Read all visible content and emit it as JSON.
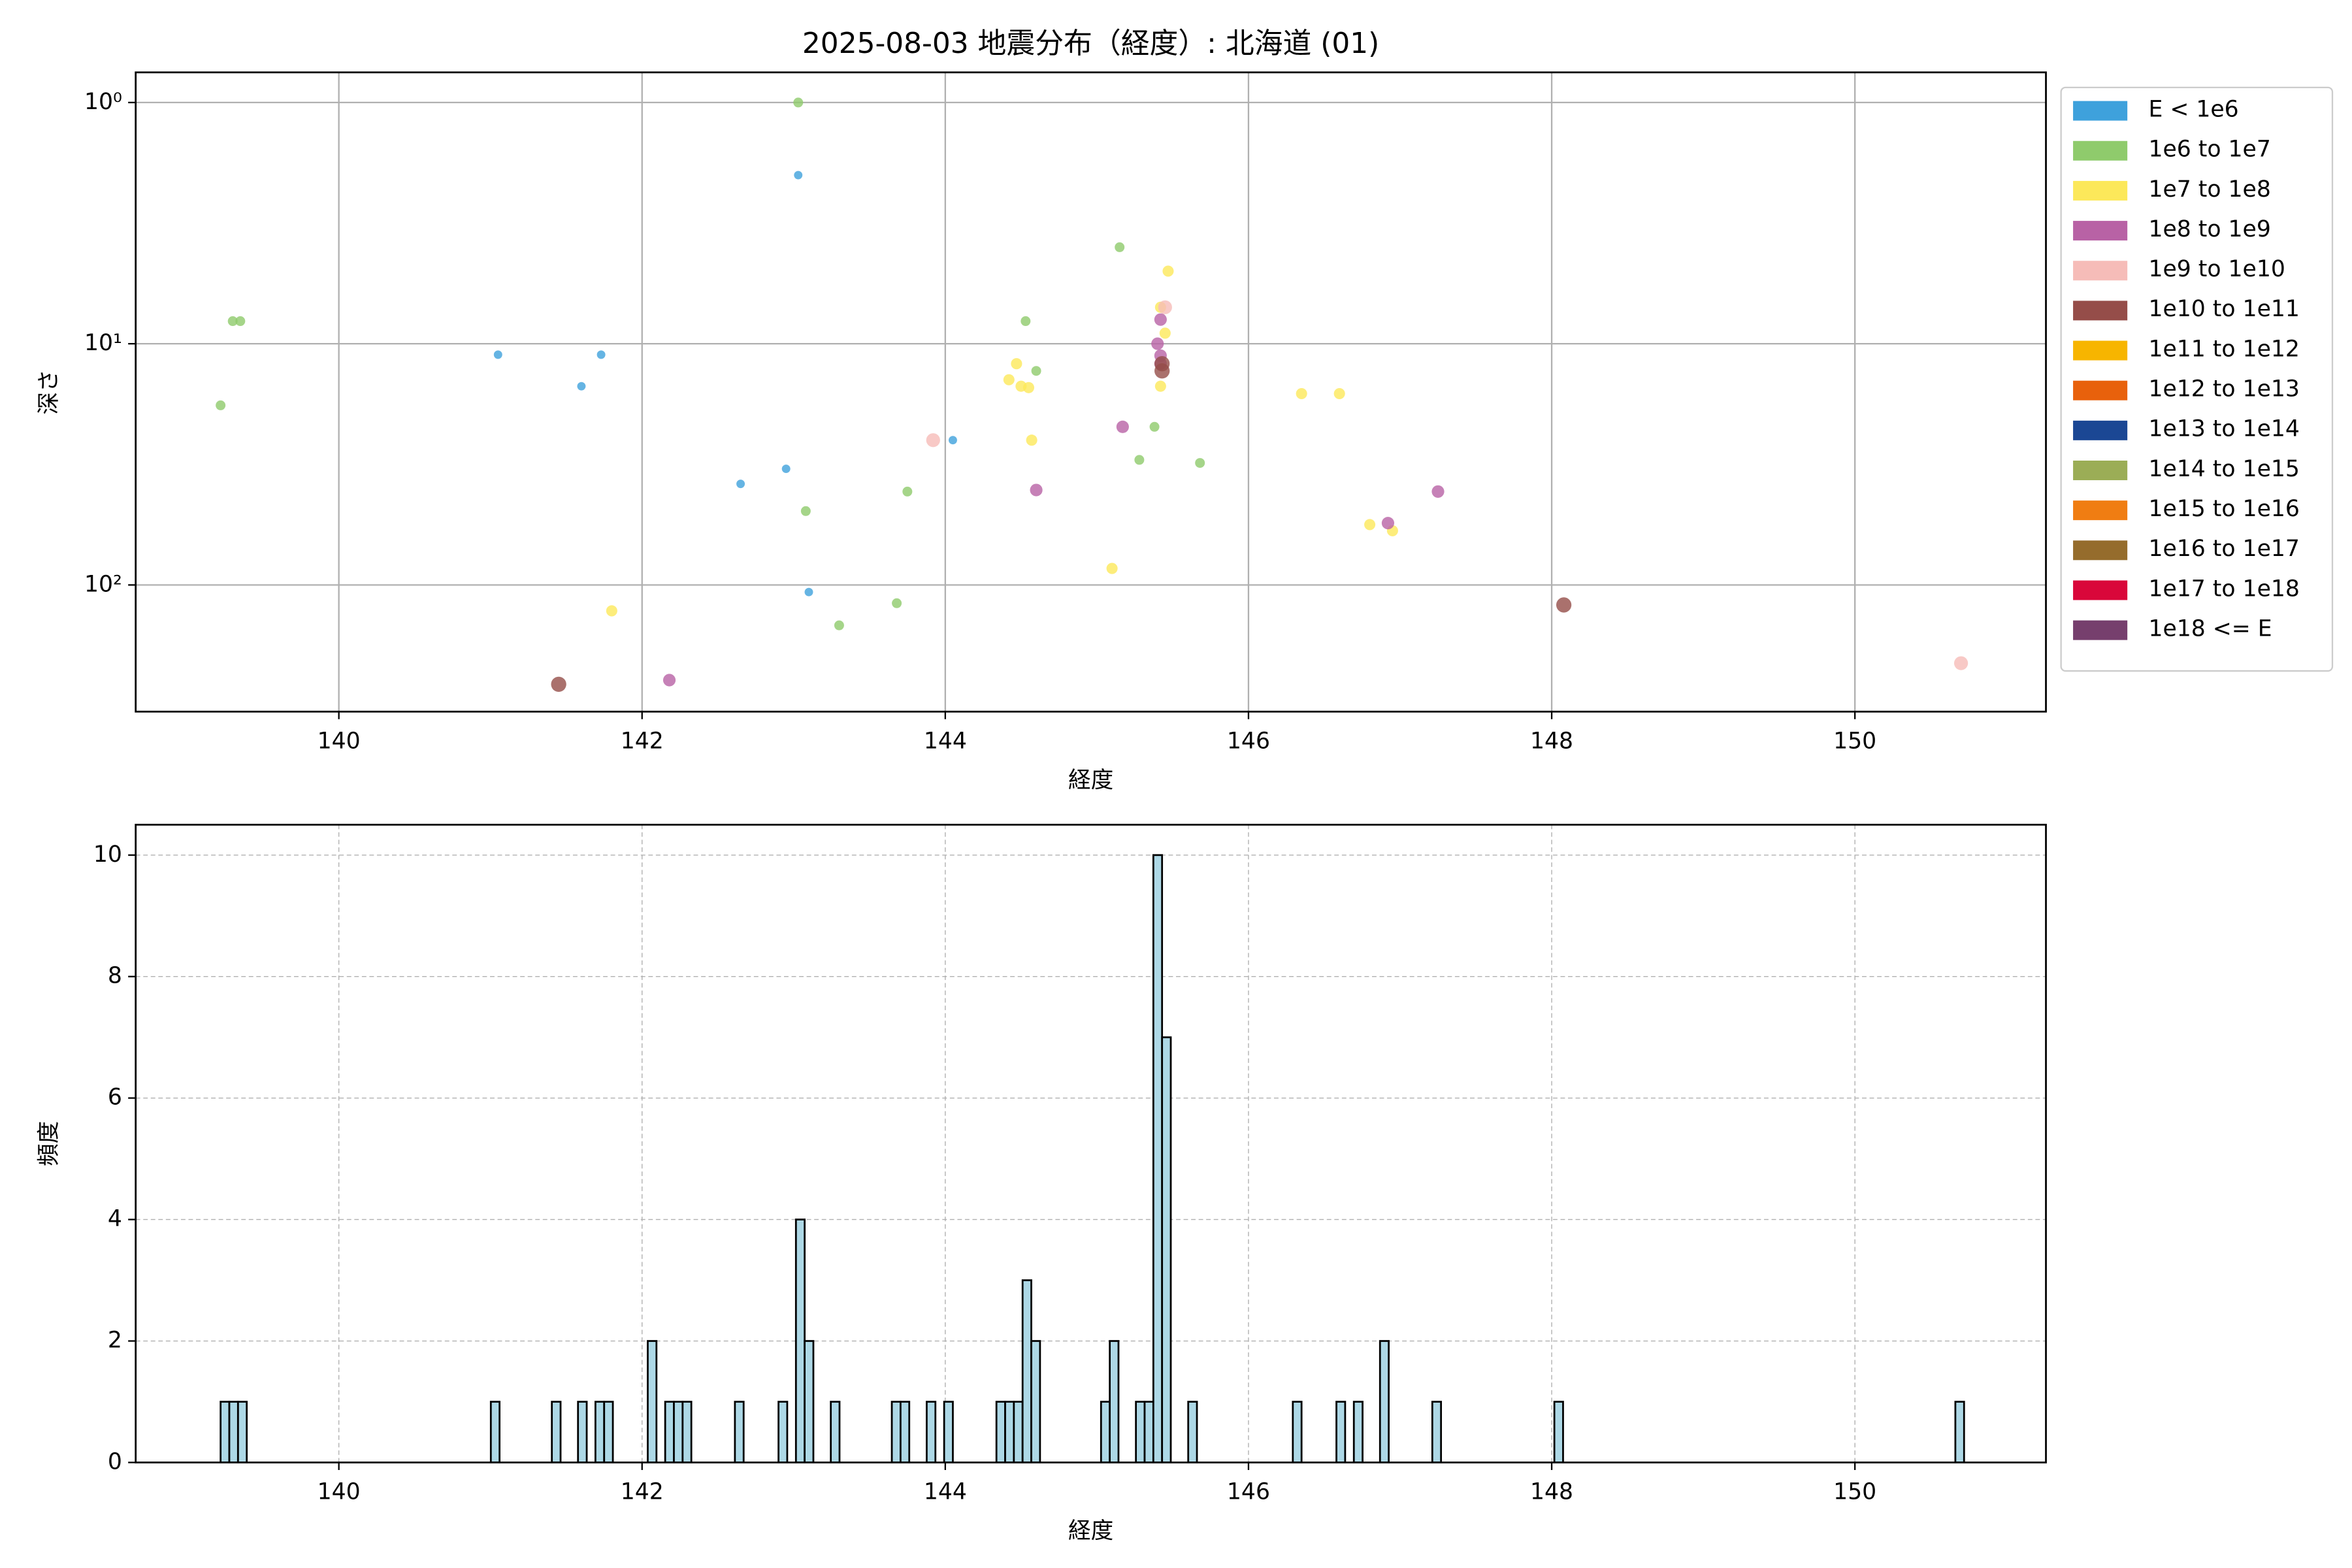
{
  "chart_data": [
    {
      "type": "scatter",
      "title": "2025-08-03 地震分布（経度）: 北海道 (01)",
      "x_label": "経度",
      "y_label": "深さ",
      "xlim": [
        138.66,
        151.26
      ],
      "xticks": [
        140,
        142,
        144,
        146,
        148,
        150
      ],
      "ylim": [
        0.75,
        335
      ],
      "y_log": true,
      "y_inverted": true,
      "yticks": [
        {
          "value": 1,
          "label": "10⁰"
        },
        {
          "value": 10,
          "label": "10¹"
        },
        {
          "value": 100,
          "label": "10²"
        }
      ],
      "grid": true,
      "legend": "outside-right",
      "series": [
        {
          "name": "E < 1e6",
          "color": "#3ea1dc",
          "x": [
            143.03,
            141.05,
            141.73,
            141.6,
            142.65,
            142.95,
            144.05,
            143.1
          ],
          "y": [
            2.0,
            11.1,
            11.1,
            15.0,
            38.1,
            33.0,
            25.1,
            107
          ]
        },
        {
          "name": "1e6 to 1e7",
          "color": "#8fcb6c",
          "x": [
            143.03,
            139.3,
            139.35,
            139.22,
            145.15,
            144.53,
            144.6,
            145.38,
            145.28,
            145.68,
            143.75,
            143.08,
            143.68,
            143.3
          ],
          "y": [
            1.0,
            8.06,
            8.06,
            18.0,
            3.98,
            8.06,
            12.96,
            22.1,
            30.3,
            31.2,
            41.0,
            49.4,
            119,
            147
          ]
        },
        {
          "name": "1e7 to 1e8",
          "color": "#fce85a",
          "x": [
            145.47,
            145.42,
            145.45,
            144.47,
            144.42,
            144.5,
            144.55,
            145.42,
            144.57,
            146.35,
            146.6,
            146.8,
            146.95,
            145.1,
            141.8
          ],
          "y": [
            5.0,
            7.06,
            9.04,
            12.1,
            14.1,
            15.0,
            15.2,
            15.0,
            25.1,
            16.1,
            16.1,
            56.2,
            59.6,
            85.4,
            128
          ]
        },
        {
          "name": "1e8 to 1e9",
          "color": "#b862a5",
          "x": [
            145.42,
            145.4,
            145.42,
            145.42,
            145.17,
            144.6,
            146.92,
            147.25,
            142.18
          ],
          "y": [
            7.94,
            10,
            11.2,
            12.1,
            22.1,
            40.4,
            55.4,
            41.0,
            248
          ]
        },
        {
          "name": "1e9 to 1e10",
          "color": "#f6bcb8",
          "x": [
            143.92,
            145.45,
            150.7
          ],
          "y": [
            25.1,
            7.06,
            211
          ]
        },
        {
          "name": "1e10 to 1e11",
          "color": "#954d49",
          "x": [
            141.45,
            148.08,
            145.43,
            145.43
          ],
          "y": [
            258,
            121,
            12.96,
            12.1
          ]
        },
        {
          "name": "1e11 to 1e12",
          "color": "#f7b500",
          "x": [],
          "y": []
        },
        {
          "name": "1e12 to 1e13",
          "color": "#e8610c",
          "x": [],
          "y": []
        },
        {
          "name": "1e13 to 1e14",
          "color": "#1b4794",
          "x": [],
          "y": []
        },
        {
          "name": "1e14 to 1e15",
          "color": "#9bad56",
          "x": [],
          "y": []
        },
        {
          "name": "1e15 to 1e16",
          "color": "#f07d12",
          "x": [],
          "y": []
        },
        {
          "name": "1e16 to 1e17",
          "color": "#956c2c",
          "x": [],
          "y": []
        },
        {
          "name": "1e17 to 1e18",
          "color": "#d9073a",
          "x": [],
          "y": []
        },
        {
          "name": "1e18 <= E",
          "color": "#763f6d",
          "x": [],
          "y": []
        }
      ]
    },
    {
      "type": "histogram",
      "x_label": "経度",
      "y_label": "頻度",
      "color": "#add8e6",
      "edge_color": "#000000",
      "xlim": [
        138.66,
        151.26
      ],
      "xticks": [
        140,
        142,
        144,
        146,
        148,
        150
      ],
      "ylim": [
        0,
        10.5
      ],
      "yticks": [
        0,
        2,
        4,
        6,
        8,
        10
      ],
      "grid": true,
      "grid_style": "dashed",
      "bins": [
        139.22,
        139.2775,
        139.335,
        139.3925,
        139.45,
        139.5075,
        139.565,
        139.6225,
        139.68,
        139.7375,
        139.795,
        139.8525,
        139.91,
        139.9675,
        140.025,
        140.0825,
        140.14,
        140.1975,
        140.255,
        140.3125,
        140.37,
        140.4275,
        140.485,
        140.5425,
        140.6,
        140.6575,
        140.715,
        140.7725,
        140.83,
        140.8875,
        140.945,
        141.0025,
        141.06,
        141.1175,
        141.175,
        141.2325,
        141.29,
        141.3475,
        141.405,
        141.4625,
        141.52,
        141.5775,
        141.635,
        141.6925,
        141.75,
        141.8075,
        141.865,
        141.9225,
        141.98,
        142.0375,
        142.095,
        142.1525,
        142.21,
        142.2675,
        142.325,
        142.3825,
        142.44,
        142.4975,
        142.555,
        142.6125,
        142.67,
        142.7275,
        142.785,
        142.8425,
        142.9,
        142.9575,
        143.015,
        143.0725,
        143.13,
        143.1875,
        143.245,
        143.3025,
        143.36,
        143.4175,
        143.475,
        143.5325,
        143.59,
        143.6475,
        143.705,
        143.7625,
        143.82,
        143.8775,
        143.935,
        143.9925,
        144.05,
        144.1075,
        144.165,
        144.2225,
        144.28,
        144.3375,
        144.395,
        144.4525,
        144.51,
        144.5675,
        144.625,
        144.6825,
        144.74,
        144.7975,
        144.855,
        144.9125,
        144.97,
        145.0275,
        145.085,
        145.1425,
        145.2,
        145.2575,
        145.315,
        145.3725,
        145.43,
        145.4875,
        145.545,
        145.6025,
        145.66,
        145.7175,
        145.775,
        145.8325,
        145.89,
        145.9475,
        146.005,
        146.0625,
        146.12,
        146.1775,
        146.235,
        146.2925,
        146.35,
        146.4075,
        146.465,
        146.5225,
        146.58,
        146.6375,
        146.695,
        146.7525,
        146.81,
        146.8675,
        146.925,
        146.9825,
        147.04,
        147.0975,
        147.155,
        147.2125,
        147.27,
        147.3275,
        147.385,
        147.4425,
        147.5,
        147.5575,
        147.615,
        147.6725,
        147.73,
        147.7875,
        147.845,
        147.9025,
        147.96,
        148.0175,
        148.075,
        148.1325,
        148.19,
        148.2475,
        148.305,
        148.3625,
        148.42,
        148.4775,
        148.535,
        148.5925,
        148.65,
        148.7075,
        148.765,
        148.8225,
        148.88,
        148.9375,
        148.995,
        149.0525,
        149.11,
        149.1675,
        149.225,
        149.2825,
        149.34,
        149.3975,
        149.455,
        149.5125,
        149.57,
        149.6275,
        149.685,
        149.7425,
        149.8,
        149.8575,
        149.915,
        149.9725,
        150.03,
        150.0875,
        150.145,
        150.2025,
        150.26,
        150.3175,
        150.375,
        150.4325,
        150.49,
        150.5475,
        150.605,
        150.6625,
        150.72
      ],
      "counts": [
        1,
        1,
        1,
        0,
        0,
        0,
        0,
        0,
        0,
        0,
        0,
        0,
        0,
        0,
        0,
        0,
        0,
        0,
        0,
        0,
        0,
        0,
        0,
        0,
        0,
        0,
        0,
        0,
        0,
        0,
        0,
        1,
        0,
        0,
        0,
        0,
        0,
        0,
        1,
        0,
        0,
        1,
        0,
        1,
        1,
        0,
        0,
        0,
        0,
        2,
        0,
        1,
        1,
        1,
        0,
        0,
        0,
        0,
        0,
        1,
        0,
        0,
        0,
        0,
        1,
        0,
        4,
        2,
        0,
        0,
        1,
        0,
        0,
        0,
        0,
        0,
        0,
        1,
        1,
        0,
        0,
        1,
        0,
        1,
        0,
        0,
        0,
        0,
        0,
        1,
        1,
        1,
        3,
        2,
        0,
        0,
        0,
        0,
        0,
        0,
        0,
        1,
        2,
        0,
        0,
        1,
        1,
        10,
        7,
        0,
        0,
        1,
        0,
        0,
        0,
        0,
        0,
        0,
        0,
        0,
        0,
        0,
        0,
        1,
        0,
        0,
        0,
        0,
        1,
        0,
        1,
        0,
        0,
        2,
        0,
        0,
        0,
        0,
        0,
        1,
        0,
        0,
        0,
        0,
        0,
        0,
        0,
        0,
        0,
        0,
        0,
        0,
        0,
        1,
        0,
        0,
        0,
        0,
        0,
        0,
        0,
        0,
        0,
        0,
        0,
        0,
        0,
        0,
        0,
        0,
        0,
        0,
        0,
        0,
        0,
        0,
        0,
        0,
        0,
        0,
        0,
        0,
        0,
        0,
        0,
        0,
        0,
        0,
        0,
        0,
        0,
        0,
        0,
        0,
        0,
        0,
        0,
        0,
        0,
        1
      ]
    }
  ]
}
